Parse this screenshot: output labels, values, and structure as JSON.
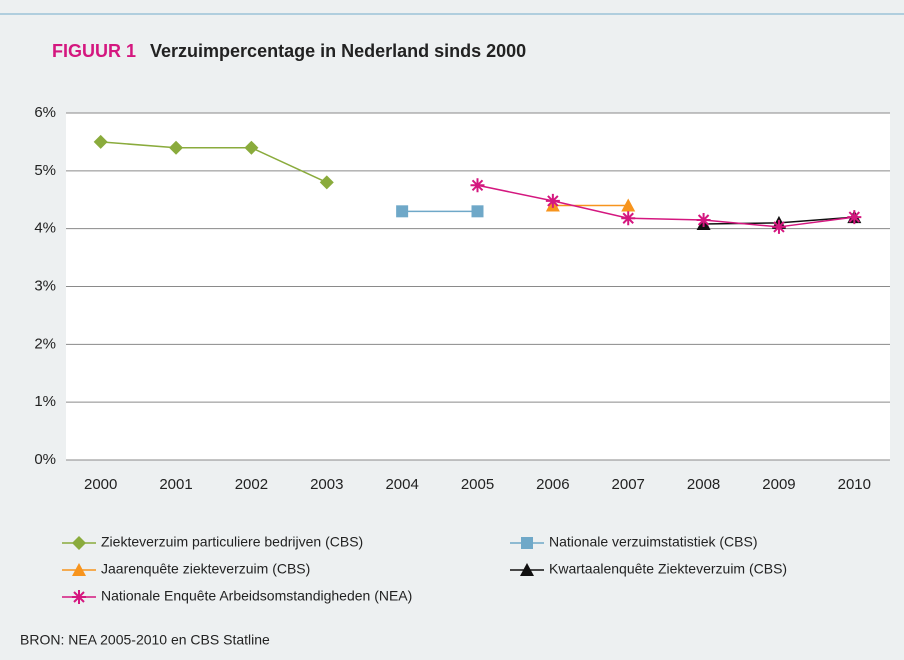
{
  "chart_data": {
    "type": "line",
    "figure_label": "FIGUUR 1",
    "title": "Verzuimpercentage in Nederland sinds 2000",
    "source": "BRON: NEA 2005-2010 en CBS Statline",
    "categories": [
      "2000",
      "2001",
      "2002",
      "2003",
      "2004",
      "2005",
      "2006",
      "2007",
      "2008",
      "2009",
      "2010"
    ],
    "ylim": [
      0,
      6
    ],
    "yticks": [
      {
        "value": 0,
        "label": "0%"
      },
      {
        "value": 1,
        "label": "1%"
      },
      {
        "value": 2,
        "label": "2%"
      },
      {
        "value": 3,
        "label": "3%"
      },
      {
        "value": 4,
        "label": "4%"
      },
      {
        "value": 5,
        "label": "5%"
      },
      {
        "value": 6,
        "label": "6%"
      }
    ],
    "grid": true,
    "legend": "bottom",
    "series": [
      {
        "name": "Ziekteverzuim particuliere bedrijven (CBS)",
        "color": "#8aab3c",
        "marker": "diamond",
        "values": [
          5.5,
          5.4,
          5.4,
          4.8,
          null,
          null,
          null,
          null,
          null,
          null,
          null
        ]
      },
      {
        "name": "Nationale verzuimstatistiek (CBS)",
        "color": "#6fa8c8",
        "marker": "square",
        "values": [
          null,
          null,
          null,
          null,
          4.3,
          4.3,
          null,
          null,
          null,
          null,
          null
        ]
      },
      {
        "name": "Jaarenquête ziekteverzuim (CBS)",
        "color": "#f7941d",
        "marker": "triangle",
        "values": [
          null,
          null,
          null,
          null,
          null,
          null,
          4.4,
          4.4,
          null,
          null,
          null
        ]
      },
      {
        "name": "Kwartaalenquête Ziekteverzuim (CBS)",
        "color": "#111111",
        "marker": "triangle",
        "values": [
          null,
          null,
          null,
          null,
          null,
          null,
          null,
          null,
          4.08,
          4.1,
          4.2
        ]
      },
      {
        "name": "Nationale Enquête Arbeidsomstandigheden (NEA)",
        "color": "#d4177f",
        "marker": "star",
        "values": [
          null,
          null,
          null,
          null,
          null,
          4.75,
          4.48,
          4.18,
          4.15,
          4.03,
          4.2
        ]
      }
    ]
  }
}
